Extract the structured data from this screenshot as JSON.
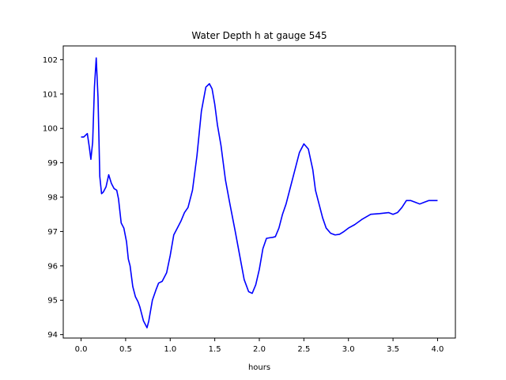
{
  "chart_data": {
    "type": "line",
    "title": "Water Depth h at gauge 545",
    "xlabel": "hours",
    "ylabel": "",
    "xlim": [
      -0.2,
      4.2
    ],
    "ylim": [
      93.9,
      102.4
    ],
    "xticks": [
      0.0,
      0.5,
      1.0,
      1.5,
      2.0,
      2.5,
      3.0,
      3.5,
      4.0
    ],
    "xtick_labels": [
      "0.0",
      "0.5",
      "1.0",
      "1.5",
      "2.0",
      "2.5",
      "3.0",
      "3.5",
      "4.0"
    ],
    "yticks": [
      94,
      95,
      96,
      97,
      98,
      99,
      100,
      101,
      102
    ],
    "ytick_labels": [
      "94",
      "95",
      "96",
      "97",
      "98",
      "99",
      "100",
      "101",
      "102"
    ],
    "grid": false,
    "legend": "none",
    "series": [
      {
        "color": "#0000ff",
        "x": [
          0.0,
          0.03,
          0.07,
          0.09,
          0.11,
          0.13,
          0.15,
          0.17,
          0.19,
          0.21,
          0.23,
          0.25,
          0.28,
          0.31,
          0.34,
          0.37,
          0.4,
          0.42,
          0.45,
          0.48,
          0.51,
          0.53,
          0.55,
          0.58,
          0.61,
          0.64,
          0.66,
          0.7,
          0.74,
          0.76,
          0.8,
          0.84,
          0.87,
          0.91,
          0.96,
          1.0,
          1.04,
          1.08,
          1.12,
          1.16,
          1.2,
          1.25,
          1.3,
          1.35,
          1.4,
          1.44,
          1.47,
          1.5,
          1.53,
          1.57,
          1.62,
          1.67,
          1.73,
          1.78,
          1.83,
          1.88,
          1.92,
          1.96,
          2.0,
          2.04,
          2.08,
          2.12,
          2.15,
          2.18,
          2.22,
          2.26,
          2.3,
          2.35,
          2.4,
          2.45,
          2.5,
          2.55,
          2.6,
          2.63,
          2.67,
          2.71,
          2.75,
          2.8,
          2.85,
          2.9,
          2.95,
          3.0,
          3.07,
          3.15,
          3.25,
          3.35,
          3.45,
          3.5,
          3.55,
          3.6,
          3.65,
          3.7,
          3.75,
          3.8,
          3.85,
          3.9,
          3.95,
          4.0
        ],
        "y": [
          99.75,
          99.75,
          99.85,
          99.5,
          99.1,
          99.6,
          101.2,
          102.05,
          100.9,
          98.6,
          98.1,
          98.15,
          98.3,
          98.65,
          98.4,
          98.25,
          98.2,
          97.95,
          97.25,
          97.1,
          96.7,
          96.2,
          96.0,
          95.4,
          95.1,
          94.95,
          94.8,
          94.4,
          94.2,
          94.4,
          95.0,
          95.3,
          95.5,
          95.55,
          95.8,
          96.3,
          96.9,
          97.1,
          97.3,
          97.55,
          97.7,
          98.2,
          99.2,
          100.5,
          101.2,
          101.3,
          101.15,
          100.7,
          100.1,
          99.5,
          98.5,
          97.8,
          97.0,
          96.3,
          95.6,
          95.25,
          95.2,
          95.45,
          95.9,
          96.5,
          96.8,
          96.82,
          96.83,
          96.85,
          97.1,
          97.5,
          97.8,
          98.3,
          98.8,
          99.3,
          99.55,
          99.4,
          98.8,
          98.2,
          97.8,
          97.4,
          97.1,
          96.95,
          96.9,
          96.92,
          97.0,
          97.1,
          97.2,
          97.35,
          97.5,
          97.52,
          97.55,
          97.5,
          97.55,
          97.7,
          97.9,
          97.9,
          97.85,
          97.8,
          97.85,
          97.9,
          97.9,
          97.9
        ]
      }
    ]
  }
}
